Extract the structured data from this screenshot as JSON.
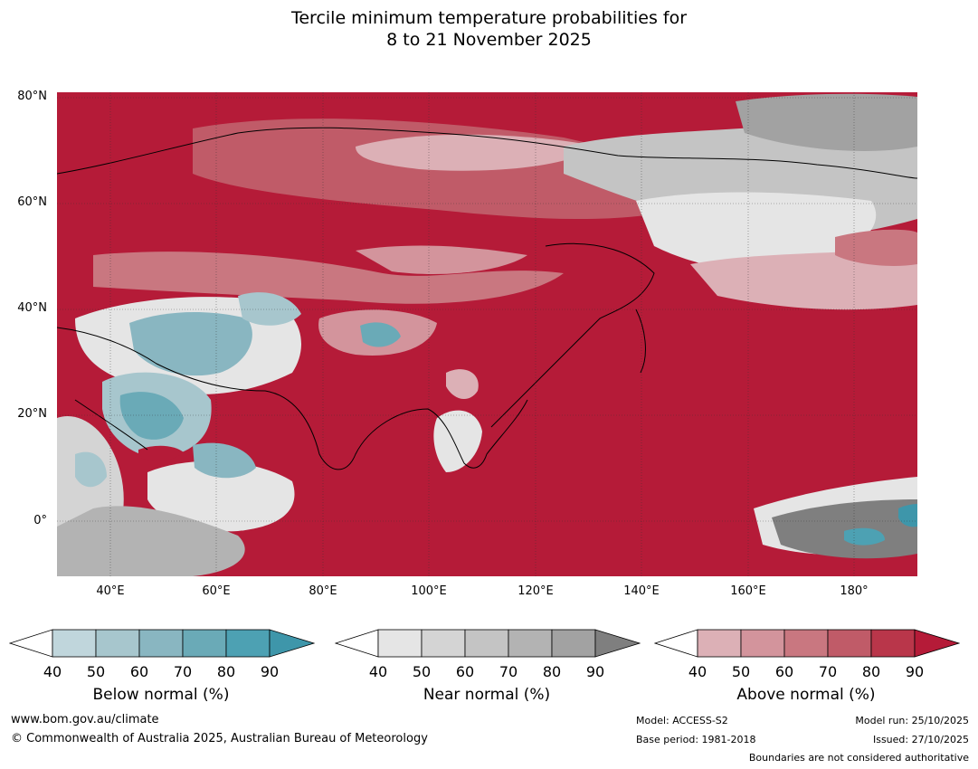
{
  "title": {
    "line1": "Tercile minimum temperature probabilities for",
    "line2": "8 to 21 November 2025"
  },
  "map": {
    "lat_labels": [
      "80°N",
      "60°N",
      "40°N",
      "20°N",
      "0°"
    ],
    "lon_labels": [
      "40°E",
      "60°E",
      "80°E",
      "100°E",
      "120°E",
      "140°E",
      "160°E",
      "180°"
    ],
    "colors": {
      "ocean_dominant": "#b51b38",
      "above_light": "#dcb0b6",
      "below": "#4da1b3",
      "near": "#b5b5b5",
      "coast": "#000000",
      "border": "#7f7f7f"
    }
  },
  "legends": [
    {
      "name": "below",
      "title": "Below normal (%)",
      "ticks": [
        "40",
        "50",
        "60",
        "70",
        "80",
        "90"
      ],
      "colors": [
        "#ffffff",
        "#c0d6dc",
        "#a7c6cd",
        "#89b6c1",
        "#6aaab7",
        "#4da1b3",
        "#3e96aa"
      ]
    },
    {
      "name": "near",
      "title": "Near normal (%)",
      "ticks": [
        "40",
        "50",
        "60",
        "70",
        "80",
        "90"
      ],
      "colors": [
        "#ffffff",
        "#e5e5e5",
        "#d4d4d4",
        "#c4c4c4",
        "#b3b3b3",
        "#a2a2a2",
        "#7f7f7f"
      ]
    },
    {
      "name": "above",
      "title": "Above normal (%)",
      "ticks": [
        "40",
        "50",
        "60",
        "70",
        "80",
        "90"
      ],
      "colors": [
        "#ffffff",
        "#dcb0b6",
        "#d3949c",
        "#c97780",
        "#c05b68",
        "#b9364a",
        "#b51b38"
      ]
    }
  ],
  "footer": {
    "website": "www.bom.gov.au/climate",
    "copyright": "© Commonwealth of Australia 2025, Australian Bureau of Meteorology",
    "model": "Model: ACCESS-S2",
    "base_period": "Base period: 1981-2018",
    "model_run": "Model run: 25/10/2025",
    "issued": "Issued: 27/10/2025",
    "disclaimer": "Boundaries are not considered authoritative"
  }
}
